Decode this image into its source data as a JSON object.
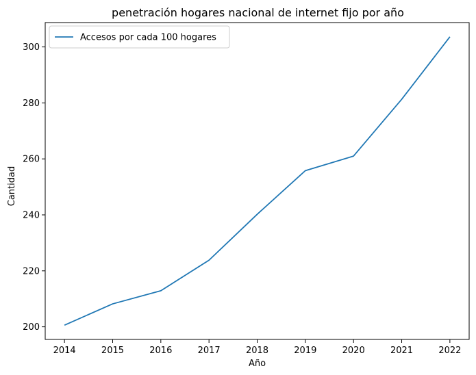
{
  "chart_data": {
    "type": "line",
    "title": "penetración hogares nacional de internet fijo por año",
    "xlabel": "Año",
    "ylabel": "Cantidad",
    "x": [
      "2014",
      "2015",
      "2016",
      "2017",
      "2018",
      "2019",
      "2020",
      "2021",
      "2022"
    ],
    "series": [
      {
        "name": "Accesos por cada 100 hogares",
        "color": "#1f77b4",
        "values": [
          200.6,
          208.2,
          212.9,
          223.8,
          240.2,
          255.8,
          261.0,
          281.3,
          303.6
        ]
      }
    ],
    "xlim": [
      2013.6,
      2022.4
    ],
    "ylim": [
      195.5,
      308.7
    ],
    "yticks": [
      200,
      220,
      240,
      260,
      280,
      300
    ],
    "grid": false,
    "legend_position": "top-left"
  }
}
